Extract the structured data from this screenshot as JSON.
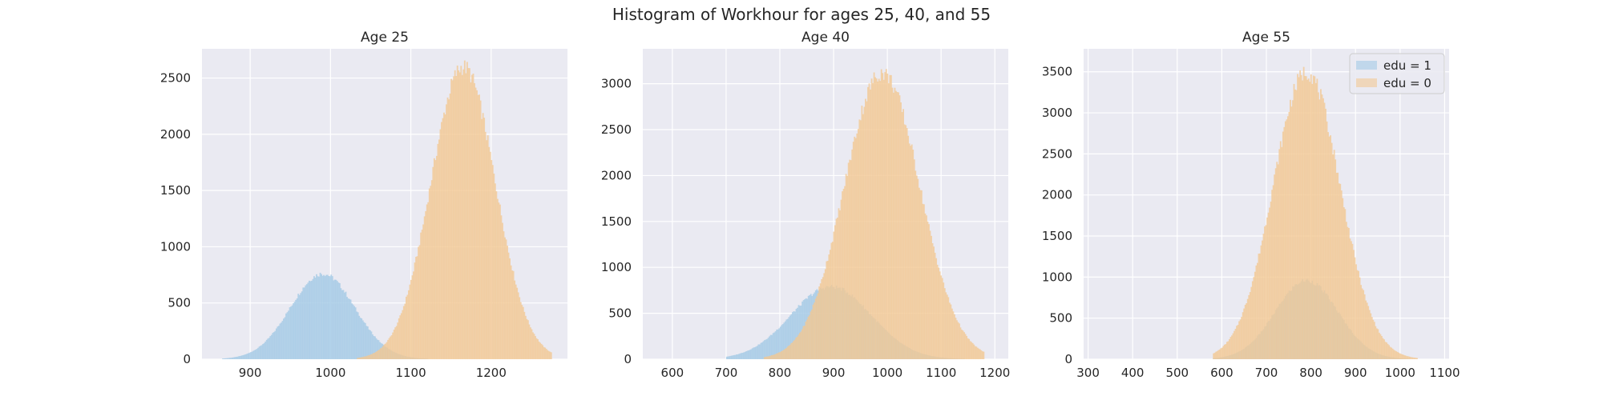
{
  "figure": {
    "title": "Histogram of Workhour for ages 25, 40, and 55",
    "colors": {
      "background": "#eaeaf2",
      "grid": "#ffffff",
      "edu1": "#a3c9e6",
      "edu0": "#f2c894",
      "overlap": "#b8b896"
    }
  },
  "chart_data": [
    {
      "type": "histogram",
      "title": "Age 25",
      "xlim": [
        840,
        1295
      ],
      "ylim": [
        0,
        2760
      ],
      "xticks": [
        900,
        1000,
        1100,
        1200
      ],
      "yticks": [
        0,
        500,
        1000,
        1500,
        2000,
        2500
      ],
      "grid": true,
      "series": [
        {
          "name": "edu = 1",
          "color": "#a3c9e6",
          "mean": 990,
          "sd": 40,
          "peak": 760,
          "range": [
            865,
            1120
          ]
        },
        {
          "name": "edu = 0",
          "color": "#f2c894",
          "mean": 1165,
          "sd": 40,
          "peak": 2600,
          "range": [
            1010,
            1275
          ]
        }
      ]
    },
    {
      "type": "histogram",
      "title": "Age 40",
      "xlim": [
        545,
        1225
      ],
      "ylim": [
        0,
        3380
      ],
      "xticks": [
        600,
        700,
        800,
        900,
        1000,
        1100,
        1200
      ],
      "yticks": [
        0,
        500,
        1000,
        1500,
        2000,
        2500,
        3000
      ],
      "grid": true,
      "series": [
        {
          "name": "edu = 1",
          "color": "#a3c9e6",
          "mean": 895,
          "sd": 75,
          "peak": 790,
          "range": [
            700,
            1170
          ]
        },
        {
          "name": "edu = 0",
          "color": "#f2c894",
          "mean": 990,
          "sd": 70,
          "peak": 3120,
          "range": [
            770,
            1180
          ]
        }
      ]
    },
    {
      "type": "histogram",
      "title": "Age 55",
      "xlim": [
        290,
        1110
      ],
      "ylim": [
        0,
        3780
      ],
      "xticks": [
        300,
        400,
        500,
        600,
        700,
        800,
        900,
        1000,
        1100
      ],
      "yticks": [
        0,
        500,
        1000,
        1500,
        2000,
        2500,
        3000,
        3500
      ],
      "grid": true,
      "legend": {
        "placement": "top-right",
        "entries": [
          "edu = 1",
          "edu = 0"
        ]
      },
      "series": [
        {
          "name": "edu = 1",
          "color": "#a3c9e6",
          "mean": 790,
          "sd": 70,
          "peak": 960,
          "range": [
            580,
            1030
          ]
        },
        {
          "name": "edu = 0",
          "color": "#f2c894",
          "mean": 790,
          "sd": 75,
          "peak": 3500,
          "range": [
            580,
            1040
          ]
        }
      ]
    }
  ]
}
